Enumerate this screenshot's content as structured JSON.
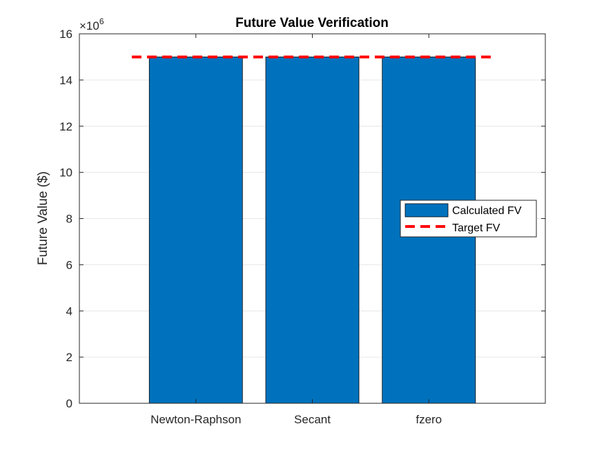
{
  "chart_data": {
    "type": "bar",
    "title": "Future Value Verification",
    "xlabel": "",
    "ylabel": "Future Value ($)",
    "categories": [
      "Newton-Raphson",
      "Secant",
      "fzero"
    ],
    "series": [
      {
        "name": "Calculated FV",
        "values": [
          15000000,
          15000000,
          15000000
        ],
        "color": "#0072BD"
      }
    ],
    "reference_line": {
      "name": "Target FV",
      "value": 15000000,
      "color": "#FF0000",
      "style": "dashed"
    },
    "ylim": [
      0,
      16000000
    ],
    "yticks": [
      0,
      2,
      4,
      6,
      8,
      10,
      12,
      14,
      16
    ],
    "y_exponent_base": "×10",
    "y_exponent_power": "6",
    "grid": true,
    "legend_position": "right"
  }
}
